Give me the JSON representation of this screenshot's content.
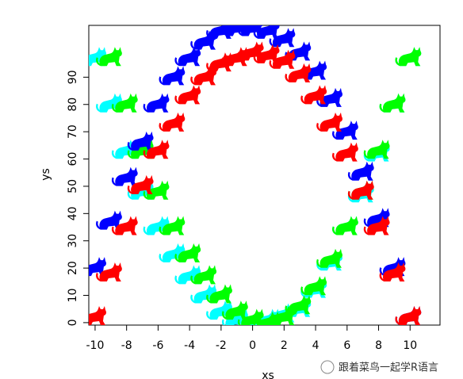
{
  "chart_data": {
    "type": "scatter",
    "x_label": "xs",
    "y_label": "ys",
    "xlim": [
      -10.4,
      11.9
    ],
    "ylim": [
      -0.9,
      109
    ],
    "xticks": [
      -10,
      -8,
      -6,
      -4,
      -2,
      0,
      2,
      4,
      6,
      8,
      10
    ],
    "yticks": [
      0,
      10,
      20,
      30,
      40,
      50,
      60,
      70,
      80,
      90
    ],
    "marker": "cat",
    "series": [
      {
        "color": "#00ffff",
        "x": [
          -10,
          -9,
          -8,
          -7,
          -6,
          -5,
          -4,
          -3,
          -2,
          -1,
          0,
          1,
          2,
          3,
          4,
          5,
          6,
          7,
          8,
          9,
          10
        ],
        "values": [
          97,
          80,
          63,
          48,
          35,
          25,
          17,
          10,
          4,
          1,
          0,
          1,
          3,
          5,
          12,
          22,
          35,
          47,
          62,
          80,
          97
        ]
      },
      {
        "color": "#00ff00",
        "x": [
          -9,
          -8,
          -7,
          -6,
          -5,
          -4,
          -3,
          -2,
          -1,
          0,
          1,
          2,
          3,
          4,
          5,
          6,
          7,
          8,
          9,
          10
        ],
        "values": [
          97,
          80,
          63,
          48,
          35,
          25,
          17,
          10,
          4,
          1,
          0,
          2,
          6,
          13,
          23,
          35,
          48,
          63,
          80,
          97
        ]
      },
      {
        "color": "#0000ff",
        "x": [
          -10,
          -9,
          -8,
          -7,
          -6,
          -5,
          -4,
          -3,
          -2,
          -1,
          0,
          1,
          2,
          3,
          4,
          5,
          6,
          7,
          8,
          9,
          10
        ],
        "values": [
          20,
          37,
          53,
          66,
          80,
          90,
          97,
          103,
          107,
          108,
          108,
          107,
          104,
          99,
          92,
          82,
          70,
          55,
          38,
          20,
          2
        ]
      },
      {
        "color": "#ff0000",
        "x": [
          -10,
          -9,
          -8,
          -7,
          -6,
          -5,
          -4,
          -3,
          -2,
          -1,
          0,
          1,
          2,
          3,
          4,
          5,
          6,
          7,
          8,
          9,
          10
        ],
        "values": [
          2,
          18,
          35,
          50,
          63,
          73,
          83,
          90,
          95,
          97,
          99,
          98,
          96,
          91,
          83,
          73,
          62,
          48,
          35,
          18,
          2
        ]
      }
    ]
  },
  "watermark": "跟着菜鸟一起学R语言"
}
